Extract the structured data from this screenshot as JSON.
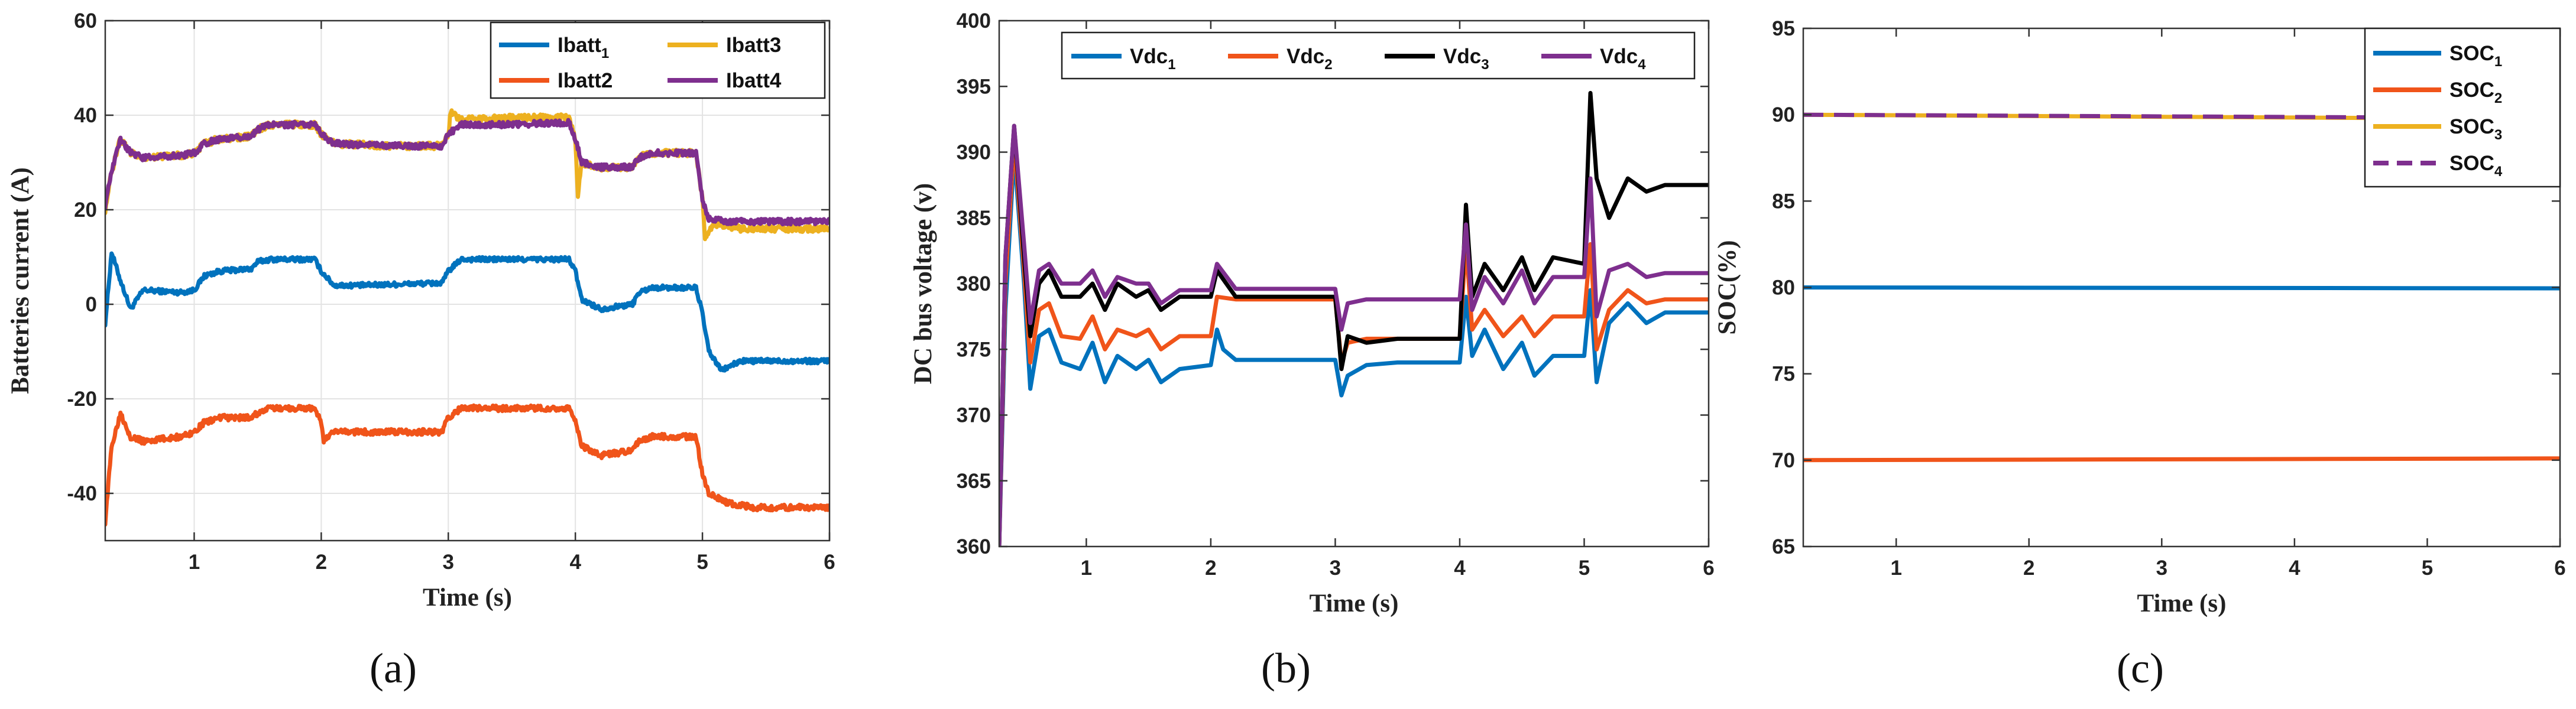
{
  "colors": {
    "blue": "#0072BD",
    "orange": "#F0541A",
    "yellow": "#EDB120",
    "purple": "#7E2F8E",
    "black": "#000000",
    "grid": "#e3e3e3",
    "axis": "#333333"
  },
  "chart_data": [
    {
      "id": "a",
      "type": "line",
      "panel_label": "(a)",
      "xlabel": "Time (s)",
      "ylabel": "Batteries current (A)",
      "xlim": [
        0.3,
        6
      ],
      "ylim": [
        -50,
        60
      ],
      "xticks": [
        1,
        2,
        3,
        4,
        5,
        6
      ],
      "xtick_labels": [
        "1",
        "2",
        "3",
        "4",
        "5",
        "6"
      ],
      "yticks": [
        -40,
        -20,
        0,
        20,
        40,
        60
      ],
      "ytick_labels": [
        "-40",
        "-20",
        "0",
        "20",
        "40",
        "60"
      ],
      "grid": true,
      "legend_position": "top-right",
      "legend_layout": "two-columns",
      "legend": [
        {
          "label": "Ibatt",
          "sub": "1",
          "color": "blue",
          "dash": false
        },
        {
          "label": "Ibatt3",
          "sub": "",
          "color": "yellow",
          "dash": false
        },
        {
          "label": "Ibatt2",
          "sub": "",
          "color": "orange",
          "dash": false
        },
        {
          "label": "Ibatt4",
          "sub": "",
          "color": "purple",
          "dash": false
        }
      ],
      "series": [
        {
          "name": "Ibatt1",
          "color": "blue",
          "noise": 0.5,
          "x": [
            0.3,
            0.35,
            0.42,
            0.5,
            0.6,
            0.9,
            1.0,
            1.08,
            1.2,
            1.45,
            1.5,
            1.6,
            1.95,
            2.0,
            2.1,
            2.3,
            2.95,
            3.0,
            3.1,
            3.5,
            3.95,
            4.0,
            4.05,
            4.2,
            4.45,
            4.5,
            4.6,
            4.95,
            5.0,
            5.05,
            5.15,
            5.3,
            6.0
          ],
          "y": [
            -4,
            11,
            5,
            -1,
            3,
            2.5,
            3,
            6,
            7,
            7.5,
            9,
            9.5,
            9.5,
            7,
            4,
            4,
            4.5,
            7,
            9.5,
            9.5,
            9.5,
            7,
            1,
            -1,
            0,
            2.5,
            3.5,
            3.5,
            -2,
            -10,
            -14,
            -12,
            -12
          ]
        },
        {
          "name": "Ibatt2",
          "color": "orange",
          "noise": 0.6,
          "x": [
            0.3,
            0.35,
            0.42,
            0.5,
            0.6,
            0.9,
            1.0,
            1.08,
            1.2,
            1.45,
            1.5,
            1.6,
            1.95,
            2.0,
            2.02,
            2.1,
            2.5,
            2.95,
            3.0,
            3.1,
            3.5,
            3.95,
            4.0,
            4.05,
            4.2,
            4.45,
            4.5,
            4.6,
            4.95,
            5.0,
            5.05,
            5.2,
            5.4,
            6.0
          ],
          "y": [
            -46,
            -30,
            -23,
            -28,
            -29,
            -28,
            -27,
            -25,
            -24,
            -24,
            -23,
            -22,
            -22,
            -25,
            -29,
            -27,
            -27,
            -27,
            -24,
            -22,
            -22,
            -22,
            -25,
            -30,
            -32,
            -31,
            -29,
            -28,
            -28,
            -36,
            -40,
            -42,
            -43,
            -43
          ]
        },
        {
          "name": "Ibatt3",
          "color": "yellow",
          "noise": 0.7,
          "x": [
            0.3,
            0.35,
            0.42,
            0.5,
            0.6,
            0.9,
            1.0,
            1.08,
            1.2,
            1.45,
            1.5,
            1.6,
            1.95,
            2.0,
            2.1,
            2.5,
            2.95,
            3.0,
            3.02,
            3.1,
            3.5,
            3.95,
            4.0,
            4.02,
            4.05,
            4.2,
            4.45,
            4.5,
            4.6,
            4.95,
            5.0,
            5.02,
            5.1,
            5.3,
            6.0
          ],
          "y": [
            20,
            28,
            35,
            32,
            31,
            31.5,
            32,
            34,
            35,
            35.5,
            37,
            38,
            38,
            36,
            34,
            33.5,
            33.5,
            36,
            41,
            39,
            39.5,
            39.5,
            35,
            23,
            30,
            29,
            29,
            31,
            32,
            32,
            22,
            14,
            17,
            16,
            16
          ]
        },
        {
          "name": "Ibatt4",
          "color": "purple",
          "noise": 0.6,
          "x": [
            0.3,
            0.35,
            0.42,
            0.5,
            0.6,
            0.9,
            1.0,
            1.08,
            1.2,
            1.45,
            1.5,
            1.6,
            1.95,
            2.0,
            2.1,
            2.5,
            2.95,
            3.0,
            3.1,
            3.5,
            3.95,
            4.0,
            4.05,
            4.2,
            4.45,
            4.5,
            4.6,
            4.95,
            5.0,
            5.05,
            5.2,
            5.4,
            6.0
          ],
          "y": [
            21,
            28,
            35,
            32,
            31,
            31.5,
            32,
            34,
            35,
            35.5,
            37,
            38,
            38,
            36,
            34,
            33.5,
            33.5,
            36,
            38,
            38,
            38.5,
            35,
            30,
            29,
            29,
            31,
            32,
            32,
            22,
            18,
            17.5,
            17.5,
            17.5
          ]
        }
      ]
    },
    {
      "id": "b",
      "type": "line",
      "panel_label": "(b)",
      "xlabel": "Time (s)",
      "ylabel": "DC bus voltage (v)",
      "xlim": [
        0.3,
        6
      ],
      "ylim": [
        360,
        400
      ],
      "xticks": [
        1,
        2,
        3,
        4,
        5,
        6
      ],
      "xtick_labels": [
        "1",
        "2",
        "3",
        "4",
        "5",
        "6"
      ],
      "yticks": [
        360,
        365,
        370,
        375,
        380,
        385,
        390,
        395,
        400
      ],
      "ytick_labels": [
        "360",
        "365",
        "370",
        "375",
        "380",
        "385",
        "390",
        "395",
        "400"
      ],
      "grid": false,
      "legend_position": "top",
      "legend_layout": "one-row",
      "legend": [
        {
          "label": "Vdc",
          "sub": "1",
          "color": "blue",
          "dash": false
        },
        {
          "label": "Vdc",
          "sub": "2",
          "color": "orange",
          "dash": false
        },
        {
          "label": "Vdc",
          "sub": "3",
          "color": "black",
          "dash": false
        },
        {
          "label": "Vdc",
          "sub": "4",
          "color": "purple",
          "dash": false
        }
      ],
      "series": [
        {
          "name": "Vdc1",
          "color": "blue",
          "noise": 0,
          "x": [
            0.3,
            0.35,
            0.42,
            0.5,
            0.55,
            0.62,
            0.7,
            0.8,
            0.95,
            1.05,
            1.15,
            1.25,
            1.4,
            1.5,
            1.6,
            1.75,
            2.0,
            2.05,
            2.1,
            2.2,
            3.0,
            3.05,
            3.1,
            3.25,
            3.5,
            4.0,
            4.05,
            4.1,
            4.2,
            4.35,
            4.5,
            4.6,
            4.75,
            5.0,
            5.05,
            5.1,
            5.2,
            5.35,
            5.5,
            5.65,
            6.0
          ],
          "y": [
            360,
            378,
            390,
            380,
            372,
            376,
            376.5,
            374,
            373.5,
            375.5,
            372.5,
            374.5,
            373.5,
            374.2,
            372.5,
            373.5,
            373.8,
            376.5,
            375,
            374.2,
            374.2,
            371.5,
            373,
            373.8,
            374,
            374,
            379,
            374.5,
            376.5,
            373.5,
            375.5,
            373,
            374.5,
            374.5,
            379.5,
            372.5,
            377,
            378.5,
            377,
            377.8,
            377.8
          ]
        },
        {
          "name": "Vdc2",
          "color": "orange",
          "noise": 0,
          "x": [
            0.3,
            0.35,
            0.42,
            0.5,
            0.55,
            0.62,
            0.7,
            0.8,
            0.95,
            1.05,
            1.15,
            1.25,
            1.4,
            1.5,
            1.6,
            1.75,
            2.0,
            2.05,
            2.2,
            3.0,
            3.05,
            3.1,
            3.25,
            3.5,
            4.0,
            4.05,
            4.1,
            4.2,
            4.35,
            4.5,
            4.6,
            4.75,
            5.0,
            5.05,
            5.1,
            5.2,
            5.35,
            5.5,
            5.65,
            6.0
          ],
          "y": [
            360,
            380,
            391,
            381,
            374,
            378,
            378.5,
            376,
            375.8,
            377.5,
            375,
            376.5,
            376,
            376.5,
            375,
            376,
            376,
            379,
            378.8,
            378.8,
            374,
            375.5,
            375.8,
            375.8,
            375.8,
            383,
            376.5,
            378,
            376,
            377.5,
            376,
            377.5,
            377.5,
            383,
            375,
            378,
            379.5,
            378.5,
            378.8,
            378.8
          ]
        },
        {
          "name": "Vdc3",
          "color": "black",
          "noise": 0,
          "x": [
            0.3,
            0.35,
            0.42,
            0.5,
            0.55,
            0.62,
            0.7,
            0.8,
            0.95,
            1.05,
            1.15,
            1.25,
            1.4,
            1.5,
            1.6,
            1.75,
            2.0,
            2.05,
            2.2,
            3.0,
            3.05,
            3.1,
            3.25,
            3.5,
            4.0,
            4.05,
            4.1,
            4.2,
            4.35,
            4.5,
            4.6,
            4.75,
            5.0,
            5.05,
            5.1,
            5.2,
            5.35,
            5.5,
            5.65,
            6.0
          ],
          "y": [
            360,
            382,
            392,
            382,
            376,
            380,
            381,
            379,
            379,
            380,
            378,
            380,
            379,
            379.5,
            378,
            379,
            379,
            381,
            379,
            379,
            373.5,
            376,
            375.5,
            375.8,
            375.8,
            386,
            379,
            381.5,
            379.5,
            382,
            379.5,
            382,
            381.5,
            394.5,
            388,
            385,
            388,
            387,
            387.5,
            387.5
          ]
        },
        {
          "name": "Vdc4",
          "color": "purple",
          "noise": 0,
          "x": [
            0.3,
            0.35,
            0.42,
            0.5,
            0.55,
            0.62,
            0.7,
            0.8,
            0.95,
            1.05,
            1.15,
            1.25,
            1.4,
            1.5,
            1.6,
            1.75,
            2.0,
            2.05,
            2.2,
            3.0,
            3.05,
            3.1,
            3.25,
            3.5,
            4.0,
            4.05,
            4.1,
            4.2,
            4.35,
            4.5,
            4.6,
            4.75,
            5.0,
            5.05,
            5.1,
            5.2,
            5.35,
            5.5,
            5.65,
            6.0
          ],
          "y": [
            360,
            382,
            392,
            383,
            377,
            381,
            381.5,
            380,
            380,
            381,
            379,
            380.5,
            380,
            380,
            378.5,
            379.5,
            379.5,
            381.5,
            379.6,
            379.6,
            376.5,
            378.5,
            378.8,
            378.8,
            378.8,
            384.5,
            378,
            380.5,
            378.5,
            381,
            378.5,
            380.5,
            380.5,
            388,
            377.5,
            381,
            381.5,
            380.5,
            380.8,
            380.8
          ]
        }
      ]
    },
    {
      "id": "c",
      "type": "line",
      "panel_label": "(c)",
      "xlabel": "Time (s)",
      "ylabel": "SOC(%)",
      "xlim": [
        0.3,
        6
      ],
      "ylim": [
        65,
        95
      ],
      "xticks": [
        1,
        2,
        3,
        4,
        5,
        6
      ],
      "xtick_labels": [
        "1",
        "2",
        "3",
        "4",
        "5",
        "6"
      ],
      "yticks": [
        65,
        70,
        75,
        80,
        85,
        90,
        95
      ],
      "ytick_labels": [
        "65",
        "70",
        "75",
        "80",
        "85",
        "90",
        "95"
      ],
      "grid": false,
      "legend_position": "top-right",
      "legend_layout": "one-column",
      "legend": [
        {
          "label": "SOC",
          "sub": "1",
          "color": "blue",
          "dash": false
        },
        {
          "label": "SOC",
          "sub": "2",
          "color": "orange",
          "dash": false
        },
        {
          "label": "SOC",
          "sub": "3",
          "color": "yellow",
          "dash": false
        },
        {
          "label": "SOC",
          "sub": "4",
          "color": "purple",
          "dash": true
        }
      ],
      "series": [
        {
          "name": "SOC1",
          "color": "blue",
          "dash": false,
          "noise": 0,
          "x": [
            0.3,
            6.0
          ],
          "y": [
            80.0,
            79.95
          ]
        },
        {
          "name": "SOC2",
          "color": "orange",
          "dash": false,
          "noise": 0,
          "x": [
            0.3,
            6.0
          ],
          "y": [
            70.0,
            70.1
          ]
        },
        {
          "name": "SOC3",
          "color": "yellow",
          "dash": false,
          "noise": 0,
          "x": [
            0.3,
            6.0
          ],
          "y": [
            90.0,
            89.75
          ]
        },
        {
          "name": "SOC4",
          "color": "purple",
          "dash": true,
          "noise": 0,
          "x": [
            0.3,
            6.0
          ],
          "y": [
            90.0,
            89.8
          ]
        }
      ]
    }
  ]
}
